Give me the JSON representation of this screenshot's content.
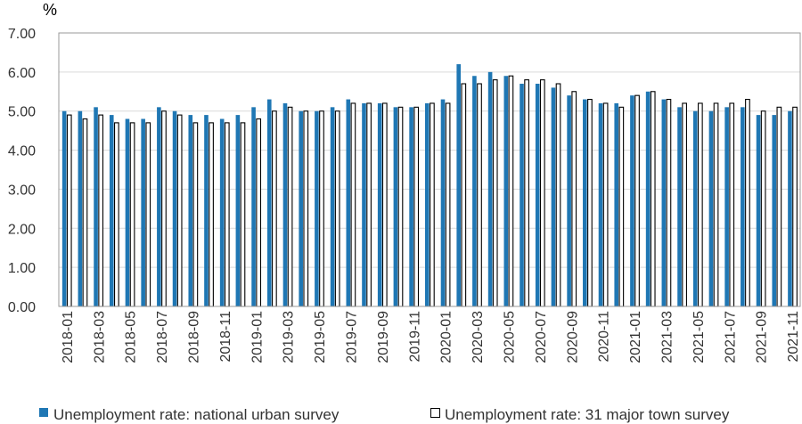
{
  "chart_data": {
    "type": "bar",
    "unit_label": "%",
    "ylim": [
      0,
      7
    ],
    "yticks": [
      "0.00",
      "1.00",
      "2.00",
      "3.00",
      "4.00",
      "5.00",
      "6.00",
      "7.00"
    ],
    "categories": [
      "2018-01",
      "2018-02",
      "2018-03",
      "2018-04",
      "2018-05",
      "2018-06",
      "2018-07",
      "2018-08",
      "2018-09",
      "2018-10",
      "2018-11",
      "2018-12",
      "2019-01",
      "2019-02",
      "2019-03",
      "2019-04",
      "2019-05",
      "2019-06",
      "2019-07",
      "2019-08",
      "2019-09",
      "2019-10",
      "2019-11",
      "2019-12",
      "2020-01",
      "2020-02",
      "2020-03",
      "2020-04",
      "2020-05",
      "2020-06",
      "2020-07",
      "2020-08",
      "2020-09",
      "2020-10",
      "2020-11",
      "2020-12",
      "2021-01",
      "2021-02",
      "2021-03",
      "2021-04",
      "2021-05",
      "2021-06",
      "2021-07",
      "2021-08",
      "2021-09",
      "2021-10",
      "2021-11"
    ],
    "x_tick_labels": [
      "2018-01",
      "2018-03",
      "2018-05",
      "2018-07",
      "2018-09",
      "2018-11",
      "2019-01",
      "2019-03",
      "2019-05",
      "2019-07",
      "2019-09",
      "2019-11",
      "2020-01",
      "2020-03",
      "2020-05",
      "2020-07",
      "2020-09",
      "2020-11",
      "2021-01",
      "2021-03",
      "2021-05",
      "2021-07",
      "2021-09",
      "2021-11"
    ],
    "grid": true,
    "legend_position": "bottom",
    "series": [
      {
        "name": "Unemployment rate: national urban survey",
        "color": "#1F77B4",
        "style": "filled",
        "values": [
          5.0,
          5.0,
          5.1,
          4.9,
          4.8,
          4.8,
          5.1,
          5.0,
          4.9,
          4.9,
          4.8,
          4.9,
          5.1,
          5.3,
          5.2,
          5.0,
          5.0,
          5.1,
          5.3,
          5.2,
          5.2,
          5.1,
          5.1,
          5.2,
          5.3,
          6.2,
          5.9,
          6.0,
          5.9,
          5.7,
          5.7,
          5.6,
          5.4,
          5.3,
          5.2,
          5.2,
          5.4,
          5.5,
          5.3,
          5.1,
          5.0,
          5.0,
          5.1,
          5.1,
          4.9,
          4.9,
          5.0
        ]
      },
      {
        "name": "Unemployment rate: 31 major town survey",
        "color": "#000000",
        "style": "outline",
        "values": [
          4.9,
          4.8,
          4.9,
          4.7,
          4.7,
          4.7,
          5.0,
          4.9,
          4.7,
          4.7,
          4.7,
          4.7,
          4.8,
          5.0,
          5.1,
          5.0,
          5.0,
          5.0,
          5.2,
          5.2,
          5.2,
          5.1,
          5.1,
          5.2,
          5.2,
          5.7,
          5.7,
          5.8,
          5.9,
          5.8,
          5.8,
          5.7,
          5.5,
          5.3,
          5.2,
          5.1,
          5.4,
          5.5,
          5.3,
          5.2,
          5.2,
          5.2,
          5.2,
          5.3,
          5.0,
          5.1,
          5.1
        ]
      }
    ]
  }
}
